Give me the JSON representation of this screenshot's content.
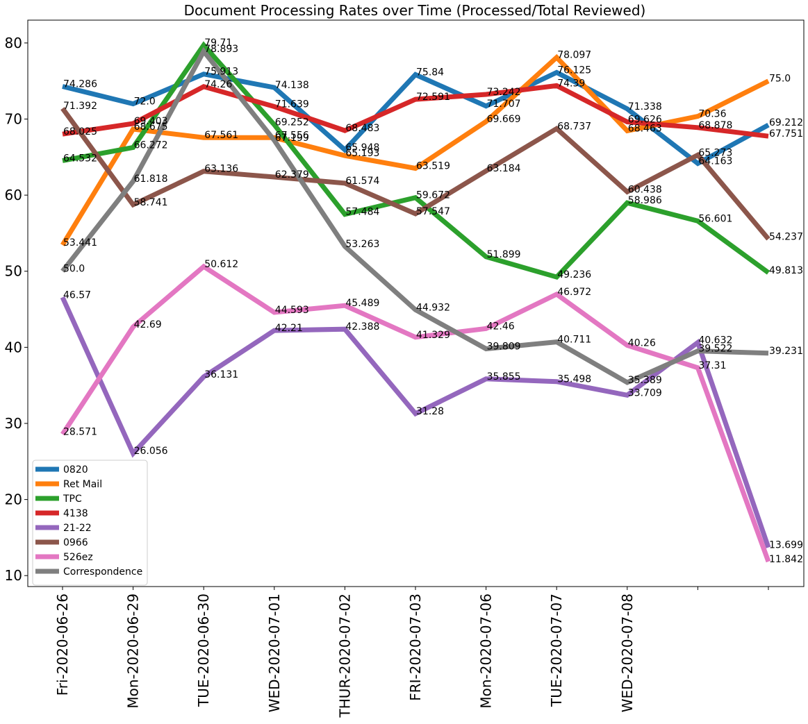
{
  "chart_data": {
    "type": "line",
    "title": "Document Processing Rates over Time (Processed/Total Reviewed)",
    "xlabel": "",
    "ylabel": "",
    "ylim": [
      8.56,
      83.0
    ],
    "y_ticks": [
      10,
      20,
      30,
      40,
      50,
      60,
      70,
      80
    ],
    "categories": [
      "Fri-2020-06-26",
      "Mon-2020-06-29",
      "TUE-2020-06-30",
      "WED-2020-07-01",
      "THUR-2020-07-02",
      "FRI-2020-07-03",
      "Mon-2020-07-06",
      "TUE-2020-07-07",
      "WED-2020-07-08",
      "",
      ""
    ],
    "grid": false,
    "legend_position": "lower-left",
    "series": [
      {
        "name": "0820",
        "color": "#1f77b4",
        "values": [
          74.286,
          72.0,
          75.913,
          74.138,
          65.948,
          75.84,
          71.707,
          76.125,
          71.338,
          64.163,
          69.212
        ],
        "labels": [
          "74.286",
          "72.0",
          "75.913",
          "74.138",
          "65.948",
          "75.84",
          "71.707",
          "76.125",
          "71.338",
          "64.163",
          "69.212"
        ]
      },
      {
        "name": "Ret Mail",
        "color": "#ff7f0e",
        "values": [
          53.441,
          68.675,
          67.561,
          67.556,
          65.193,
          63.519,
          69.669,
          78.097,
          68.463,
          70.36,
          75.0
        ],
        "labels": [
          "53.441",
          "68.675",
          "67.561",
          "67.556",
          "65.193",
          "63.519",
          "69.669",
          "78.097",
          "68.463",
          "70.36",
          "75.0"
        ]
      },
      {
        "name": "TPC",
        "color": "#2ca02c",
        "values": [
          64.532,
          66.272,
          79.71,
          69.252,
          57.484,
          59.672,
          51.899,
          49.236,
          58.986,
          56.601,
          49.813
        ],
        "labels": [
          "64.532",
          "66.272",
          "79.71",
          "69.252",
          "57.484",
          "59.672",
          "51.899",
          "49.236",
          "58.986",
          "56.601",
          "49.813"
        ]
      },
      {
        "name": "4138",
        "color": "#d62728",
        "values": [
          68.025,
          69.403,
          74.26,
          71.639,
          68.483,
          72.591,
          73.242,
          74.39,
          69.626,
          68.878,
          67.751
        ],
        "labels": [
          "68.025",
          "69.403",
          "74.26",
          "71.639",
          "68.483",
          "72.591",
          "73.242",
          "74.39",
          "69.626",
          "68.878",
          "67.751"
        ]
      },
      {
        "name": "21-22",
        "color": "#9467bd",
        "values": [
          46.57,
          26.056,
          36.131,
          42.21,
          42.388,
          31.28,
          35.855,
          35.498,
          33.709,
          40.632,
          13.699
        ],
        "labels": [
          "46.57",
          "26.056",
          "36.131",
          "42.21",
          "42.388",
          "31.28",
          "35.855",
          "35.498",
          "33.709",
          "40.632",
          "13.699"
        ]
      },
      {
        "name": "0966",
        "color": "#8c564b",
        "values": [
          71.392,
          58.741,
          63.136,
          62.379,
          61.574,
          57.547,
          63.184,
          68.737,
          60.438,
          65.273,
          54.237
        ],
        "labels": [
          "71.392",
          "58.741",
          "63.136",
          "62.379",
          "61.574",
          "57.547",
          "63.184",
          "68.737",
          "60.438",
          "65.273",
          "54.237"
        ]
      },
      {
        "name": "526ez",
        "color": "#e377c2",
        "values": [
          28.571,
          42.69,
          50.612,
          44.593,
          45.489,
          41.329,
          42.46,
          46.972,
          40.26,
          37.31,
          11.842
        ],
        "labels": [
          "28.571",
          "42.69",
          "50.612",
          "44.593",
          "45.489",
          "41.329",
          "42.46",
          "46.972",
          "40.26",
          "37.31",
          "11.842"
        ]
      },
      {
        "name": "Correspondence",
        "color": "#7f7f7f",
        "values": [
          50.0,
          61.818,
          78.893,
          67.199,
          53.263,
          44.932,
          39.809,
          40.711,
          35.389,
          39.522,
          39.231
        ],
        "labels": [
          "50.0",
          "61.818",
          "78.893",
          "67.199",
          "53.263",
          "44.932",
          "39.809",
          "40.711",
          "35.389",
          "39.522",
          "39.231"
        ]
      }
    ]
  }
}
